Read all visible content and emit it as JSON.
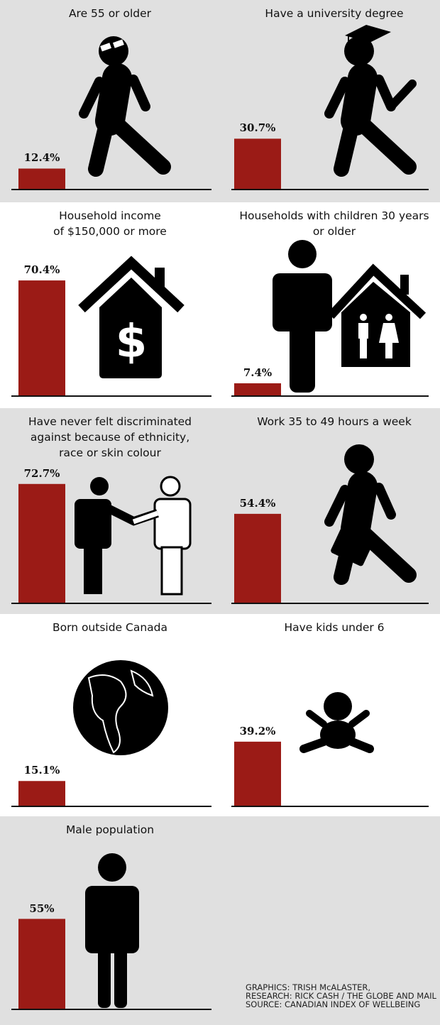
{
  "colors": {
    "bar": "#9b1b16",
    "panel_bg": "#e0e0e0",
    "icon": "#000000",
    "axis": "#111111"
  },
  "chart_data": {
    "type": "bar",
    "unit": "%",
    "panels": [
      {
        "title": "Are 55 or older",
        "value": 12.4,
        "label": "12.4%",
        "icon": "walking-person-glasses-icon"
      },
      {
        "title": "Have a university degree",
        "value": 30.7,
        "label": "30.7%",
        "icon": "walking-graduate-icon"
      },
      {
        "title": "Household income\nof $150,000 or more",
        "value": 70.4,
        "label": "70.4%",
        "icon": "house-dollar-icon"
      },
      {
        "title": "Households with children 30 years\nor older",
        "value": 7.4,
        "label": "7.4%",
        "icon": "man-and-family-house-icon"
      },
      {
        "title": "Have never felt discriminated\nagainst because of ethnicity,\nrace or skin colour",
        "value": 72.7,
        "label": "72.7%",
        "icon": "handshake-icon"
      },
      {
        "title": "Work 35 to 49 hours a week",
        "value": 54.4,
        "label": "54.4%",
        "icon": "walking-briefcase-icon"
      },
      {
        "title": "Born outside Canada",
        "value": 15.1,
        "label": "15.1%",
        "icon": "globe-icon"
      },
      {
        "title": "Have kids under 6",
        "value": 39.2,
        "label": "39.2%",
        "icon": "baby-icon"
      },
      {
        "title": "Male population",
        "value": 55,
        "label": "55%",
        "icon": "standing-man-icon"
      }
    ]
  },
  "credits": [
    "GRAPHICS: TRISH McALASTER,",
    "RESEARCH: RICK CASH / THE GLOBE AND MAIL",
    "SOURCE: CANADIAN INDEX OF WELLBEING"
  ]
}
